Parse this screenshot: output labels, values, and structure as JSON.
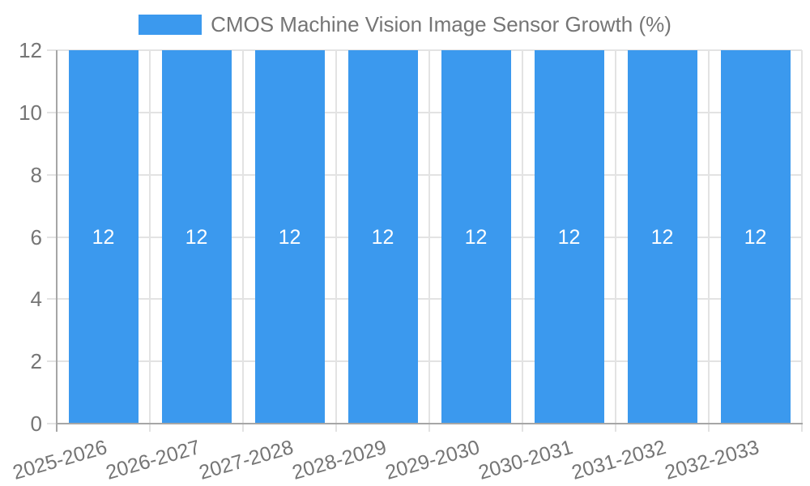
{
  "chart_data": {
    "type": "bar",
    "legend_label": "CMOS Machine Vision Image Sensor Growth (%)",
    "categories": [
      "2025-2026",
      "2026-2027",
      "2027-2028",
      "2028-2029",
      "2029-2030",
      "2030-2031",
      "2031-2032",
      "2032-2033"
    ],
    "values": [
      12,
      12,
      12,
      12,
      12,
      12,
      12,
      12
    ],
    "bar_labels": [
      "12",
      "12",
      "12",
      "12",
      "12",
      "12",
      "12",
      "12"
    ],
    "y_ticks": [
      0,
      2,
      4,
      6,
      8,
      10,
      12
    ],
    "ylim": [
      0,
      12
    ],
    "xlabel": "",
    "ylabel": "",
    "grid": "on",
    "legend_position": "top-center"
  },
  "colors": {
    "bar": "#3B99EE",
    "text": "#757575",
    "grid": "#e3e3e3",
    "axis": "#a6a6a6",
    "value_label": "#ffffff",
    "background": "#ffffff"
  }
}
